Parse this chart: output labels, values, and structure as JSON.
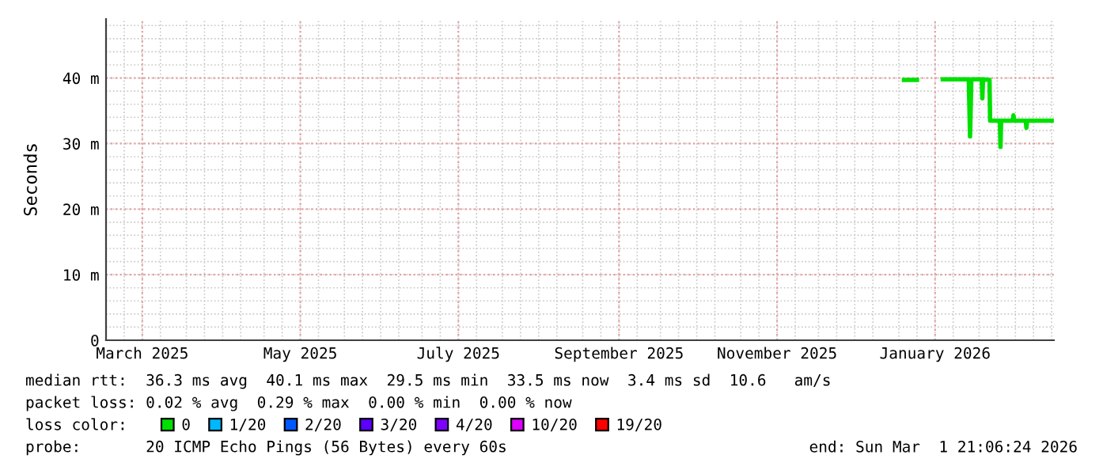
{
  "chart_data": {
    "type": "line",
    "ylabel": "Seconds",
    "xlim": [
      "2025-03-01",
      "2026-03-01T21:06"
    ],
    "xticks": [
      {
        "value": "2025-03-15",
        "label": "March 2025"
      },
      {
        "value": "2025-05-15",
        "label": "May 2025"
      },
      {
        "value": "2025-07-15",
        "label": "July 2025"
      },
      {
        "value": "2025-09-15",
        "label": "September 2025"
      },
      {
        "value": "2025-11-15",
        "label": "November 2025"
      },
      {
        "value": "2026-01-15",
        "label": "January 2026"
      }
    ],
    "ylim": [
      0,
      49
    ],
    "yticks": [
      0,
      {
        "value": 10,
        "label": "10 m"
      },
      {
        "value": 20,
        "label": "20 m"
      },
      {
        "value": 30,
        "label": "30 m"
      },
      {
        "value": 40,
        "label": "40 m"
      }
    ],
    "grid": true,
    "legend": "bottom",
    "marker": "none",
    "line_style": "solid",
    "x": [
      "2026-01-03",
      "2026-01-08",
      "2026-01-13",
      "2026-01-18",
      "2026-01-28T00:00",
      "2026-01-28T12:00",
      "2026-01-29",
      "2026-02-02T00:00",
      "2026-02-02T06:00",
      "2026-02-02T12:00",
      "2026-02-05T00:00",
      "2026-02-05T06:00",
      "2026-02-09T00:00",
      "2026-02-09T06:00",
      "2026-02-09T12:00",
      "2026-02-14T00:00",
      "2026-02-14T06:00",
      "2026-02-14T12:00",
      "2026-02-19T00:00",
      "2026-02-19T06:00",
      "2026-02-19T12:00",
      "2026-03-01"
    ],
    "series": [
      {
        "name": "0",
        "color": "#00e000",
        "values": [
          39.7,
          39.7,
          null,
          39.8,
          39.8,
          31.1,
          39.8,
          39.8,
          36.9,
          39.8,
          39.7,
          33.5,
          33.5,
          29.5,
          33.5,
          33.5,
          34.3,
          33.5,
          33.5,
          32.4,
          33.5,
          33.5
        ]
      },
      {
        "name": "1/20",
        "color": "#00b8ff",
        "values": [
          null,
          null,
          null,
          null,
          null,
          null,
          null,
          null,
          null,
          null,
          null,
          null,
          null,
          null,
          null,
          null,
          null,
          null,
          null,
          null,
          null,
          null
        ]
      },
      {
        "name": "2/20",
        "color": "#0059ff",
        "values": [
          null,
          null,
          null,
          null,
          null,
          null,
          null,
          null,
          null,
          null,
          null,
          null,
          null,
          null,
          null,
          null,
          null,
          null,
          null,
          null,
          null,
          null
        ]
      },
      {
        "name": "3/20",
        "color": "#5e00ff",
        "values": [
          null,
          null,
          null,
          null,
          null,
          null,
          null,
          null,
          null,
          null,
          null,
          null,
          null,
          null,
          null,
          null,
          null,
          null,
          null,
          null,
          null,
          null
        ]
      },
      {
        "name": "4/20",
        "color": "#7e00ff",
        "values": [
          null,
          null,
          null,
          null,
          null,
          null,
          null,
          null,
          null,
          null,
          null,
          null,
          null,
          null,
          null,
          null,
          null,
          null,
          null,
          null,
          null,
          null
        ]
      },
      {
        "name": "10/20",
        "color": "#dd00ff",
        "values": [
          null,
          null,
          null,
          null,
          null,
          null,
          null,
          null,
          null,
          null,
          null,
          null,
          null,
          null,
          null,
          null,
          null,
          null,
          null,
          null,
          null,
          null
        ]
      },
      {
        "name": "19/20",
        "color": "#ff0000",
        "values": [
          null,
          null,
          null,
          null,
          null,
          null,
          null,
          null,
          null,
          null,
          null,
          null,
          null,
          null,
          null,
          null,
          null,
          null,
          null,
          null,
          null,
          null
        ]
      }
    ],
    "annotations": [
      "median rtt:  36.3 ms avg  40.1 ms max  29.5 ms min  33.5 ms now  3.4 ms sd  10.6   am/s",
      "packet loss: 0.02 % avg  0.29 % max  0.00 % min  0.00 % now",
      "loss color:",
      "probe:       20 ICMP Echo Pings (56 Bytes) every 60s",
      "end: Sun Mar  1 21:06:24 2026"
    ]
  }
}
